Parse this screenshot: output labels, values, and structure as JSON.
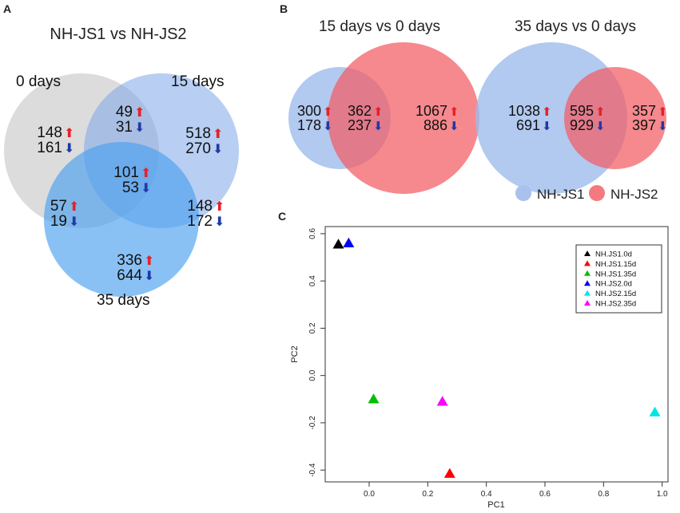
{
  "panel_labels": {
    "a": "A",
    "b": "B",
    "c": "C"
  },
  "symbols": {
    "up": "⬆",
    "down": "⬇"
  },
  "colors": {
    "up": "#e8202a",
    "down": "#1f3aa6",
    "gray_circle": "#c9c9c9",
    "blue_15": "#8fb0ea",
    "blue_35": "#4f9de6",
    "js1": "#a9c1ec",
    "js2": "#f47a7f"
  },
  "venn3": {
    "title": "NH-JS1 vs NH-JS2",
    "sets": [
      "0 days",
      "15 days",
      "35 days"
    ],
    "regions": [
      {
        "name": "0 days only",
        "up": "148",
        "down": "161"
      },
      {
        "name": "0 and 15 days",
        "up": "49",
        "down": "31"
      },
      {
        "name": "15 days only",
        "up": "518",
        "down": "270"
      },
      {
        "name": "all three",
        "up": "101",
        "down": "53"
      },
      {
        "name": "0 and 35 days",
        "up": "57",
        "down": "19"
      },
      {
        "name": "15 and 35 days",
        "up": "148",
        "down": "172"
      },
      {
        "name": "35 days only",
        "up": "336",
        "down": "644"
      }
    ]
  },
  "venn2_15": {
    "title": "15 days vs 0 days",
    "regions": [
      {
        "name": "NH-JS1 only",
        "up": "300",
        "down": "178"
      },
      {
        "name": "shared",
        "up": "362",
        "down": "237"
      },
      {
        "name": "NH-JS2 only",
        "up": "1067",
        "down": "886"
      }
    ]
  },
  "venn2_35": {
    "title": "35 days vs 0 days",
    "regions": [
      {
        "name": "NH-JS1 only",
        "up": "1038",
        "down": "691"
      },
      {
        "name": "shared",
        "up": "595",
        "down": "929"
      },
      {
        "name": "NH-JS2 only",
        "up": "357",
        "down": "397"
      }
    ]
  },
  "venn_legend": [
    "NH-JS1",
    "NH-JS2"
  ],
  "chart_data": {
    "type": "scatter",
    "title": "",
    "xlabel": "PC1",
    "ylabel": "PC2",
    "xlim": [
      -0.15,
      1.02
    ],
    "ylim": [
      -0.45,
      0.63
    ],
    "xticks": [
      0.0,
      0.2,
      0.4,
      0.6,
      0.8,
      1.0
    ],
    "xtick_labels": [
      "0.0",
      "0.2",
      "0.4",
      "0.6",
      "0.8",
      "1.0"
    ],
    "yticks": [
      -0.4,
      -0.2,
      0.0,
      0.2,
      0.4,
      0.6
    ],
    "ytick_labels": [
      "-0.4",
      "-0.2",
      "0.0",
      "0.2",
      "0.4",
      "0.6"
    ],
    "legend_position": "top-right",
    "series": [
      {
        "name": "NH.JS1.0d",
        "color": "#000000",
        "x": -0.105,
        "y": 0.555
      },
      {
        "name": "NH.JS1.15d",
        "color": "#ff0000",
        "x": 0.275,
        "y": -0.415
      },
      {
        "name": "NH.JS1.35d",
        "color": "#00c000",
        "x": 0.015,
        "y": -0.1
      },
      {
        "name": "NH.JS2.0d",
        "color": "#0000ff",
        "x": -0.07,
        "y": 0.56
      },
      {
        "name": "NH.JS2.15d",
        "color": "#00e5e5",
        "x": 0.975,
        "y": -0.155
      },
      {
        "name": "NH.JS2.35d",
        "color": "#ff00ff",
        "x": 0.25,
        "y": -0.11
      }
    ]
  }
}
